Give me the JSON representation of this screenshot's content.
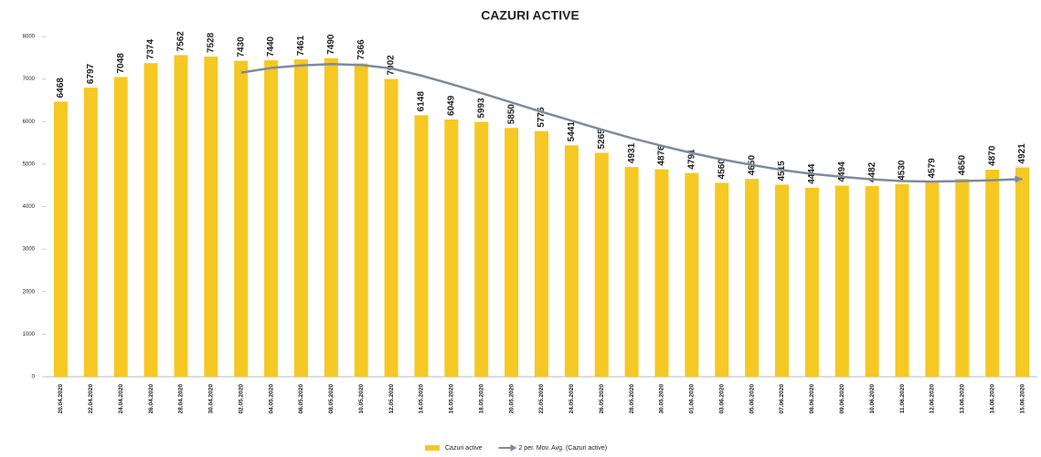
{
  "chart_data": {
    "type": "bar",
    "title": "CAZURI ACTIVE",
    "categories": [
      "20.04.2020",
      "22.04.2020",
      "24.04.2020",
      "26.04.2020",
      "28.04.2020",
      "30.04.2020",
      "02.05.2020",
      "04.05.2020",
      "06.05.2020",
      "08.05.2020",
      "10.05.2020",
      "12.05.2020",
      "14.05.2020",
      "16.05.2020",
      "18.05.2020",
      "20.05.2020",
      "22.05.2020",
      "24.05.2020",
      "26.05.2020",
      "28.05.2020",
      "30.05.2020",
      "01.06.2020",
      "03.06.2020",
      "05.06.2020",
      "07.06.2020",
      "08.06.2020",
      "09.06.2020",
      "10.06.2020",
      "11.06.2020",
      "12.06.2020",
      "13.06.2020",
      "14.06.2020",
      "15.06.2020"
    ],
    "series": [
      {
        "name": "Cazuri active",
        "type": "bar",
        "color": "#f6c823",
        "values": [
          6468,
          6797,
          7048,
          7374,
          7562,
          7528,
          7430,
          7440,
          7461,
          7490,
          7366,
          7002,
          6148,
          6049,
          5993,
          5850,
          5775,
          5441,
          5265,
          4931,
          4876,
          4791,
          4560,
          4650,
          4515,
          4444,
          4494,
          4482,
          4530,
          4579,
          4650,
          4870,
          4921
        ]
      },
      {
        "name": "2 per. Mov. Avg. (Cazuri active)",
        "type": "line",
        "color": "#7d8b9e",
        "values": [
          null,
          null,
          null,
          null,
          null,
          null,
          7150,
          7260,
          7320,
          7350,
          7330,
          7250,
          7080,
          6880,
          6670,
          6450,
          6230,
          6020,
          5810,
          5610,
          5430,
          5260,
          5110,
          4980,
          4860,
          4770,
          4700,
          4640,
          4600,
          4590,
          4600,
          4620,
          4650
        ]
      }
    ],
    "ylim": [
      0,
      8000
    ],
    "yticks": [
      0,
      1000,
      2000,
      3000,
      4000,
      5000,
      6000,
      7000,
      8000
    ],
    "grid": false,
    "legend": "bottom"
  }
}
